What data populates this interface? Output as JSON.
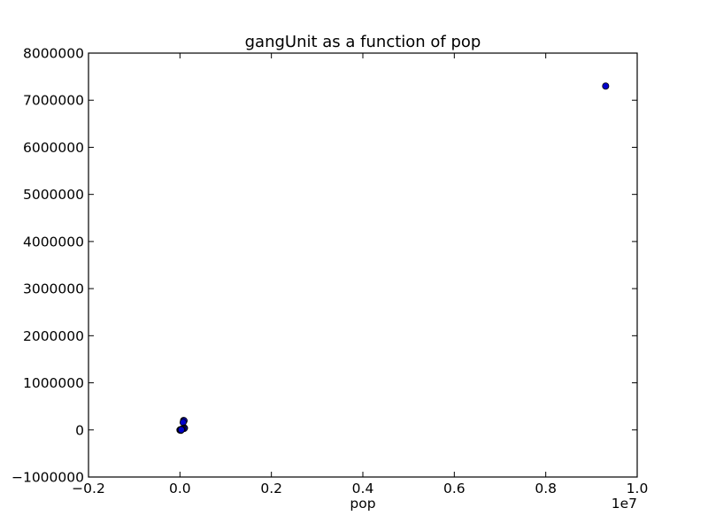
{
  "chart_data": {
    "type": "scatter",
    "title": "gangUnit as a function of pop",
    "xlabel": "pop",
    "ylabel": "",
    "x_offset_label": "1e7",
    "xlim": [
      -0.2,
      1.0
    ],
    "ylim": [
      -1000000,
      8000000
    ],
    "x_ticks": [
      -0.2,
      0.0,
      0.2,
      0.4,
      0.6,
      0.8,
      1.0
    ],
    "x_tick_labels": [
      "−0.2",
      "0.0",
      "0.2",
      "0.4",
      "0.6",
      "0.8",
      "1.0"
    ],
    "y_ticks": [
      -1000000,
      0,
      1000000,
      2000000,
      3000000,
      4000000,
      5000000,
      6000000,
      7000000,
      8000000
    ],
    "y_tick_labels": [
      "−1000000",
      "0",
      "1000000",
      "2000000",
      "3000000",
      "4000000",
      "5000000",
      "6000000",
      "7000000",
      "8000000"
    ],
    "grid": false,
    "marker_color": "#0000cc",
    "marker_edge_color": "#000000",
    "points": [
      {
        "x": 0.931,
        "y": 7300000
      },
      {
        "x": 0.008,
        "y": 200000
      },
      {
        "x": 0.009,
        "y": 195000
      },
      {
        "x": 0.007,
        "y": 160000
      },
      {
        "x": 0.01,
        "y": 40000
      },
      {
        "x": 0.009,
        "y": 30000
      },
      {
        "x": 0.006,
        "y": 25000
      },
      {
        "x": 0.004,
        "y": 15000
      },
      {
        "x": 0.003,
        "y": 10000
      },
      {
        "x": 0.002,
        "y": 5000
      },
      {
        "x": 0.001,
        "y": 0
      },
      {
        "x": 0.0,
        "y": 0
      },
      {
        "x": 0.0005,
        "y": -5000
      },
      {
        "x": 0.002,
        "y": -10000
      },
      {
        "x": 0.003,
        "y": 3000
      }
    ]
  }
}
